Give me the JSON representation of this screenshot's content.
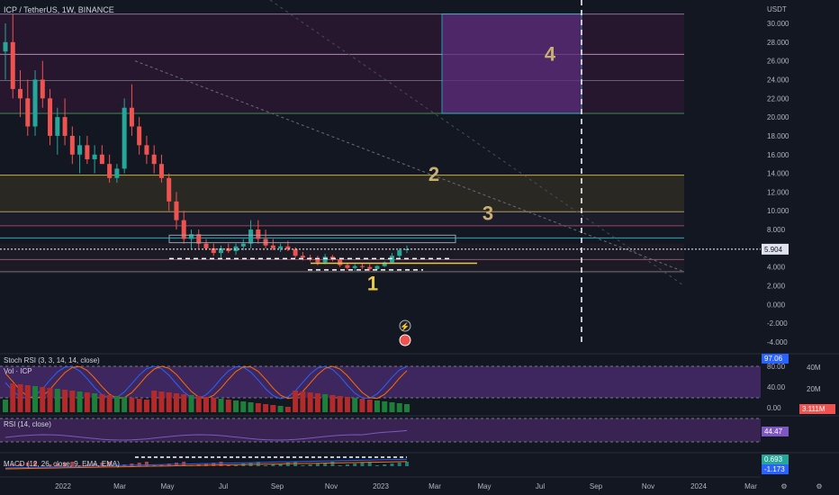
{
  "header": {
    "symbol": "ICP / TetherUS, 1W, BINANCE",
    "currency": "USDT"
  },
  "colors": {
    "background": "#131722",
    "up": "#26a69a",
    "down": "#ef5350",
    "vol_up": "#1e7f3a",
    "vol_down": "#b22a2a",
    "purple_zone": "#4a2a6e",
    "yellow_line": "#e8c84a",
    "cyan_line": "#26c6da",
    "current_price_bg": "#e0e3eb"
  },
  "annotations": {
    "label_1": "1",
    "label_2": "2",
    "label_3": "3",
    "label_4": "4"
  },
  "current_price_label": "5.904",
  "indicators": {
    "stoch_rsi": {
      "title": "Stoch RSI (3, 3, 14, 14, close)",
      "value": "97.06"
    },
    "volume": {
      "title": "Vol · ICP",
      "value": "3.111M"
    },
    "rsi": {
      "title": "RSI (14, close)",
      "value": "44.47"
    },
    "macd": {
      "title": "MACD (12, 26, close, 9, EMA, EMA)",
      "value1": "0.693",
      "value2": "-1.173"
    }
  },
  "icons": {
    "flash": "lightning-icon",
    "flag": "flag-icon"
  },
  "chart_data": {
    "type": "candlestick",
    "title": "ICP / TetherUS, 1W, BINANCE",
    "y_axis_label": "USDT",
    "y_ticks": [
      "30.000",
      "28.000",
      "26.000",
      "24.000",
      "22.000",
      "20.000",
      "18.000",
      "16.000",
      "14.000",
      "12.000",
      "10.000",
      "8.000",
      "6.000",
      "4.000",
      "2.000",
      "0.000",
      "-2.000",
      "-4.000"
    ],
    "ylim": [
      -4,
      31
    ],
    "x_ticks": [
      "2022",
      "Mar",
      "May",
      "Jul",
      "Sep",
      "Nov",
      "2023",
      "Mar",
      "May",
      "Jul",
      "Sep",
      "Nov",
      "2024",
      "Mar"
    ],
    "horizontal_levels": [
      31,
      26.7,
      23.9,
      20.4,
      13.8,
      9.9,
      8.4,
      7.1,
      5.9,
      4.8,
      4.5,
      3.9,
      3.5
    ],
    "zones": [
      {
        "name": "2",
        "from": 9.9,
        "to": 13.8
      },
      {
        "name": "4",
        "from": 20.4,
        "to": 31
      }
    ],
    "price_axis_label": "5.904",
    "volume_axis_ticks": [
      "40M",
      "20M"
    ],
    "stoch_rsi_ticks": [
      "80.00",
      "40.00",
      "0.00"
    ],
    "candles": [
      [
        27,
        30,
        24,
        28
      ],
      [
        28,
        31,
        22,
        23
      ],
      [
        23,
        25,
        20,
        22
      ],
      [
        22,
        24,
        18,
        19
      ],
      [
        19,
        25,
        18,
        24
      ],
      [
        24,
        26,
        21,
        22
      ],
      [
        22,
        23,
        17,
        18
      ],
      [
        18,
        21,
        16,
        20
      ],
      [
        20,
        22,
        17,
        18
      ],
      [
        18,
        19,
        15,
        16
      ],
      [
        16,
        18,
        14,
        17
      ],
      [
        17,
        18,
        15,
        15.5
      ],
      [
        15.5,
        17,
        14,
        16
      ],
      [
        16,
        17,
        15,
        15
      ],
      [
        15,
        16,
        13,
        13.5
      ],
      [
        13.5,
        15,
        13,
        14.5
      ],
      [
        14.5,
        22,
        14,
        21
      ],
      [
        21,
        23.5,
        18,
        19
      ],
      [
        19,
        20,
        16,
        17
      ],
      [
        17,
        18,
        15,
        16
      ],
      [
        16,
        17,
        14,
        15
      ],
      [
        15,
        16,
        13,
        13.5
      ],
      [
        13.5,
        14,
        10,
        11
      ],
      [
        11,
        12,
        8,
        9
      ],
      [
        9,
        10,
        6.5,
        7
      ],
      [
        7,
        8,
        6,
        7.5
      ],
      [
        7.5,
        8,
        6,
        6.5
      ],
      [
        6.5,
        7,
        5.8,
        6
      ],
      [
        6,
        6.5,
        5.2,
        5.5
      ],
      [
        5.5,
        6.3,
        5,
        6
      ],
      [
        6,
        6.5,
        5.5,
        5.7
      ],
      [
        5.7,
        6.5,
        5.3,
        6.2
      ],
      [
        6.2,
        7,
        5.8,
        6.5
      ],
      [
        6.5,
        9,
        6,
        8
      ],
      [
        8,
        9,
        6.5,
        7
      ],
      [
        7,
        8,
        6,
        6.3
      ],
      [
        6.3,
        7,
        5.8,
        6
      ],
      [
        6,
        6.5,
        5.6,
        6.2
      ],
      [
        6.2,
        6.8,
        5.7,
        5.9
      ],
      [
        5.9,
        6.1,
        5,
        5.2
      ],
      [
        5.2,
        5.6,
        4.7,
        5
      ],
      [
        5,
        5.3,
        4.6,
        4.9
      ],
      [
        4.9,
        5.2,
        4.2,
        4.5
      ],
      [
        4.5,
        5.4,
        4.3,
        5.1
      ],
      [
        5.1,
        5.3,
        4.6,
        4.8
      ],
      [
        4.8,
        5,
        4,
        4.2
      ],
      [
        4.2,
        4.4,
        3.7,
        3.9
      ],
      [
        3.9,
        4.3,
        3.6,
        4.1
      ],
      [
        4.1,
        4.4,
        3.8,
        4
      ],
      [
        4,
        4.3,
        3.6,
        3.8
      ],
      [
        3.8,
        4.2,
        3.7,
        4.1
      ],
      [
        4.1,
        4.6,
        4,
        4.5
      ],
      [
        4.5,
        5.5,
        4.4,
        5.2
      ],
      [
        5.2,
        6,
        5,
        5.8
      ],
      [
        5.8,
        6.3,
        5.5,
        5.9
      ]
    ]
  }
}
